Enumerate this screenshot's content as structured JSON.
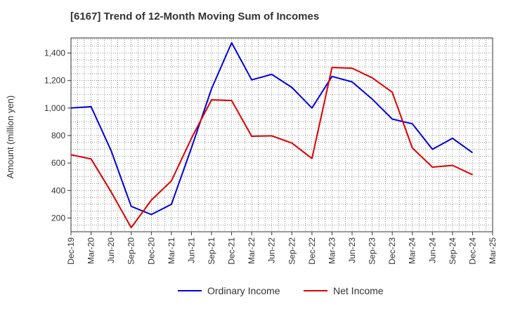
{
  "chart_data": {
    "type": "line",
    "title": "[6167]  Trend of 12-Month Moving Sum of Incomes",
    "xlabel": "",
    "ylabel": "Amount (million yen)",
    "ylim": [
      100,
      1510
    ],
    "yticks": [
      200,
      400,
      600,
      800,
      1000,
      1200,
      1400
    ],
    "ytick_labels": [
      "200",
      "400",
      "600",
      "800",
      "1,000",
      "1,200",
      "1,400"
    ],
    "categories": [
      "Dec-19",
      "Mar-20",
      "Jun-20",
      "Sep-20",
      "Dec-20",
      "Mar-21",
      "Jun-21",
      "Sep-21",
      "Dec-21",
      "Mar-22",
      "Jun-22",
      "Sep-22",
      "Dec-22",
      "Mar-23",
      "Jun-23",
      "Sep-23",
      "Dec-23",
      "Mar-24",
      "Jun-24",
      "Sep-24",
      "Dec-24",
      "Mar-25"
    ],
    "grid": true,
    "legend_position": "bottom",
    "series": [
      {
        "name": "Ordinary Income",
        "color": "#0000dd",
        "values": [
          1000,
          1010,
          690,
          285,
          225,
          300,
          710,
          1140,
          1475,
          1205,
          1245,
          1150,
          1000,
          1230,
          1190,
          1065,
          920,
          885,
          700,
          780,
          675,
          null
        ]
      },
      {
        "name": "Net Income",
        "color": "#dd0000",
        "values": [
          660,
          630,
          390,
          130,
          330,
          470,
          780,
          1060,
          1055,
          795,
          798,
          745,
          633,
          1295,
          1290,
          1220,
          1115,
          710,
          570,
          583,
          515,
          null
        ]
      }
    ]
  }
}
